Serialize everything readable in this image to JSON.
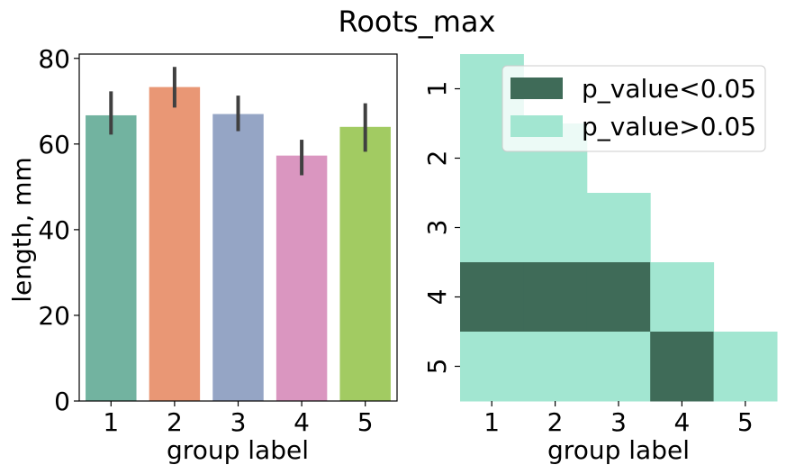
{
  "figure": {
    "title": "Roots_max"
  },
  "chart_data": [
    {
      "type": "bar",
      "xlabel": "group label",
      "ylabel": "length, mm",
      "ylim": [
        0,
        81
      ],
      "yticks": [
        "0",
        "20",
        "40",
        "60",
        "80"
      ],
      "categories": [
        "1",
        "2",
        "3",
        "4",
        "5"
      ],
      "values": [
        66.7,
        73.3,
        67.0,
        57.3,
        64.0
      ],
      "error_low": [
        62.2,
        68.5,
        63.0,
        52.7,
        58.2
      ],
      "error_high": [
        72.3,
        78.0,
        71.3,
        61.0,
        69.5
      ],
      "colors": [
        "#72b3a0",
        "#e99775",
        "#95a5c5",
        "#da96c0",
        "#a2cb62"
      ],
      "error_color": "#404040"
    },
    {
      "type": "heatmap",
      "xlabel": "group label",
      "x_categories": [
        "1",
        "2",
        "3",
        "4",
        "5"
      ],
      "y_categories": [
        "1",
        "2",
        "3",
        "4",
        "5"
      ],
      "legend_position": "upper-right",
      "legend": [
        {
          "label": "p_value<0.05",
          "color": "#3f6b58"
        },
        {
          "label": "p_value>0.05",
          "color": "#a2e6d1"
        }
      ],
      "cells": [
        [
          0,
          null,
          null,
          null,
          null
        ],
        [
          0,
          0,
          null,
          null,
          null
        ],
        [
          0,
          0,
          0,
          null,
          null
        ],
        [
          1,
          1,
          1,
          0,
          null
        ],
        [
          0,
          0,
          0,
          1,
          0
        ]
      ]
    }
  ]
}
